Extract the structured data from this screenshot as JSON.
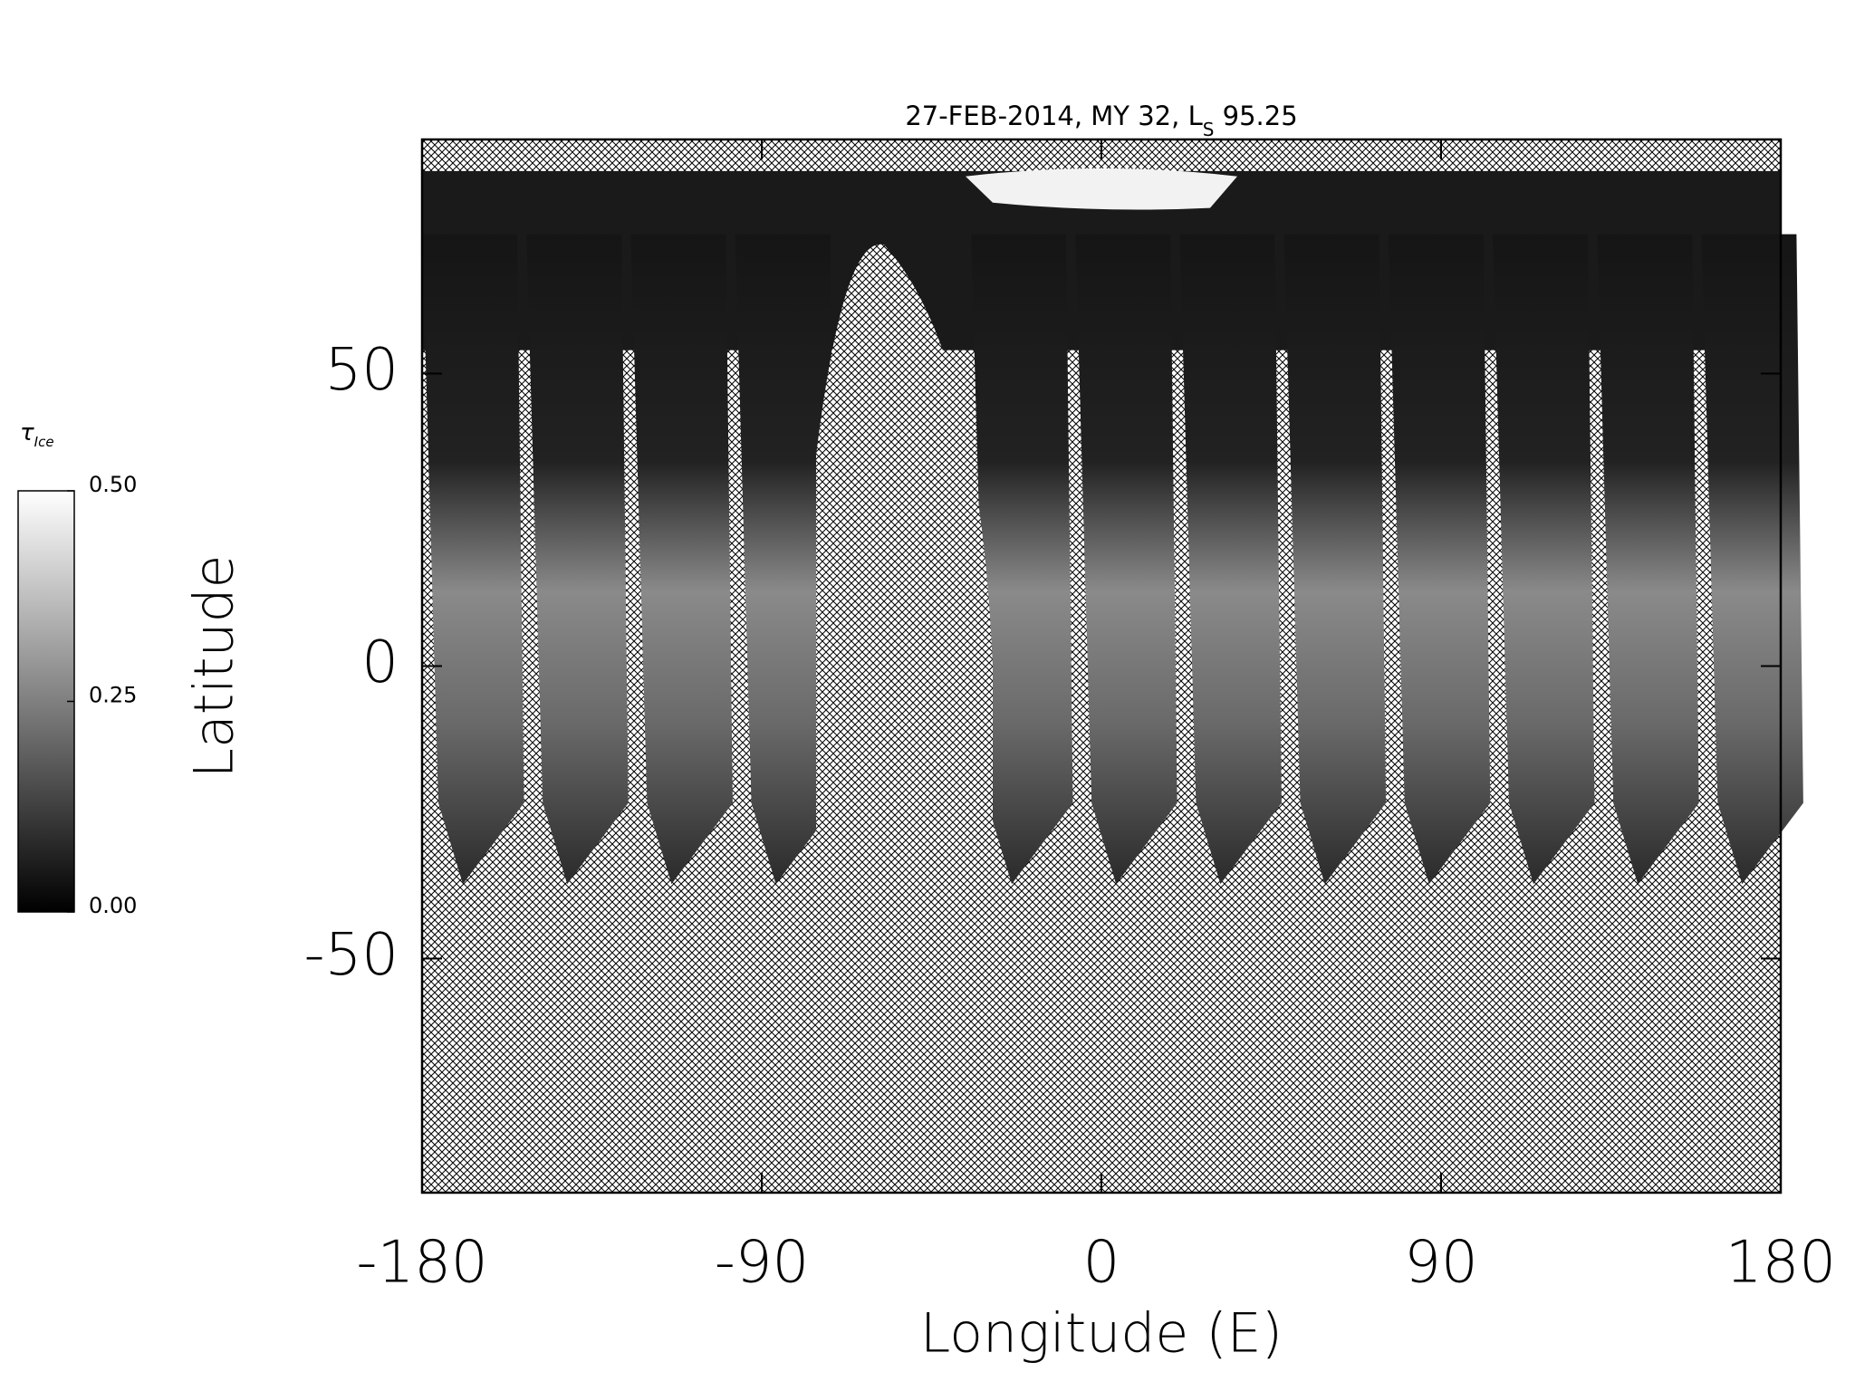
{
  "chart_data": {
    "type": "map",
    "title": "27-FEB-2014, MY 32,  L",
    "title_sub": "S",
    "title_end": " 95.25",
    "xlabel": "Longitude (E)",
    "ylabel": "Latitude",
    "xlim": [
      -180,
      180
    ],
    "xticks": [
      -180,
      -90,
      0,
      90,
      180
    ],
    "ylim": [
      -90,
      90
    ],
    "yticks": [
      -50,
      0,
      50
    ],
    "colorbar": {
      "label": "τ",
      "label_sub": "Ice",
      "lim": [
        0,
        0.5
      ],
      "ticks": [
        {
          "value": 0.5,
          "label": "0.50"
        },
        {
          "value": 0.25,
          "label": "0.25"
        },
        {
          "value": 0,
          "label": "0.00"
        }
      ]
    }
  }
}
